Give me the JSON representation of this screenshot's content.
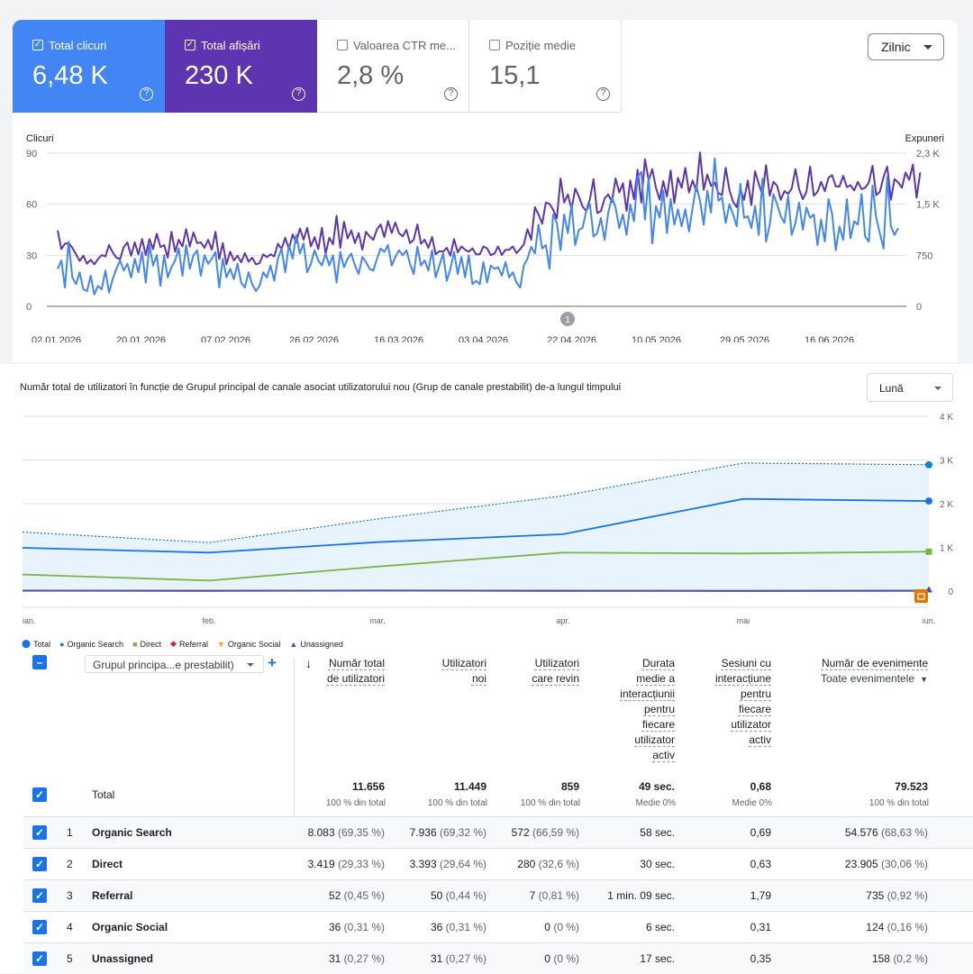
{
  "gsc": {
    "cards": [
      {
        "label": "Total clicuri",
        "value": "6,48 K",
        "checked": true,
        "color": "#4285f4"
      },
      {
        "label": "Total afișări",
        "value": "230 K",
        "checked": true,
        "color": "#5e35b1"
      },
      {
        "label": "Valoarea CTR me...",
        "value": "2,8 %",
        "checked": false,
        "color": "#ffffff"
      },
      {
        "label": "Poziție medie",
        "value": "15,1",
        "checked": false,
        "color": "#ffffff"
      }
    ],
    "period_select": "Zilnic",
    "left_axis_title": "Clicuri",
    "right_axis_title": "Expuneri",
    "left_ticks": [
      "90",
      "60",
      "30",
      "0"
    ],
    "right_ticks": [
      "2,3 K",
      "1,5 K",
      "750",
      "0"
    ],
    "x_ticks": [
      "02.01.2026",
      "20.01.2026",
      "07.02.2026",
      "26.02.2026",
      "16.03.2026",
      "03.04.2026",
      "22.04.2026",
      "10.05.2026",
      "29.05.2026",
      "16.06.2026"
    ],
    "annotation_marker": "1",
    "help_icon": "question-circle-icon"
  },
  "ga_chart": {
    "title": "Număr total de utilizatori în funcție de Grupul principal de canale asociat utilizatorului nou (Grup de canale prestabilit) de-a lungul timpului",
    "period_select": "Lună",
    "y_ticks": [
      "4 K",
      "3 K",
      "2 K",
      "1 K",
      "0"
    ],
    "x_ticks": [
      "ian.",
      "feb.",
      "mar.",
      "apr.",
      "mai",
      "iun."
    ],
    "legend": [
      {
        "label": "Total",
        "color": "#1a73e8",
        "icon": "pin-icon"
      },
      {
        "label": "Organic Search",
        "color": "#1a73e8",
        "icon": "circle-icon"
      },
      {
        "label": "Direct",
        "color": "#7cb342",
        "icon": "square-icon"
      },
      {
        "label": "Referral",
        "color": "#d81b60",
        "icon": "diamond-icon"
      },
      {
        "label": "Organic Social",
        "color": "#f9ab00",
        "icon": "triangle-down-icon"
      },
      {
        "label": "Unassigned",
        "color": "#3f51b5",
        "icon": "triangle-up-icon"
      }
    ]
  },
  "chart_data": [
    {
      "type": "line",
      "title": "",
      "xlabel": "",
      "ylabel": "Clicuri",
      "y2label": "Expuneri",
      "ylim": [
        0,
        90
      ],
      "y2lim": [
        0,
        2300
      ],
      "x_range": [
        "02.01.2026",
        "30.06.2026"
      ],
      "series": [
        {
          "name": "Total clicuri",
          "axis": "left",
          "color": "#4285f4",
          "values": [
            22,
            27,
            11,
            38,
            17,
            13,
            20,
            10,
            9,
            18,
            7,
            12,
            10,
            21,
            8,
            16,
            22,
            27,
            21,
            25,
            17,
            28,
            20,
            32,
            14,
            36,
            24,
            30,
            12,
            30,
            17,
            23,
            27,
            34,
            18,
            36,
            22,
            30,
            33,
            18,
            30,
            25,
            28,
            32,
            11,
            28,
            17,
            22,
            16,
            25,
            14,
            11,
            20,
            13,
            9,
            12,
            20,
            17,
            24,
            15,
            28,
            34,
            20,
            36,
            28,
            42,
            31,
            37,
            20,
            25,
            33,
            27,
            24,
            31,
            24,
            30,
            14,
            32,
            23,
            28,
            31,
            24,
            19,
            29,
            26,
            22,
            21,
            28,
            34,
            32,
            36,
            24,
            29,
            33,
            30,
            33,
            25,
            19,
            35,
            24,
            27,
            21,
            33,
            17,
            24,
            31,
            15,
            22,
            32,
            19,
            29,
            17,
            30,
            13,
            15,
            13,
            26,
            14,
            24,
            22,
            23,
            18,
            26,
            17,
            20,
            14,
            11,
            24,
            28,
            35,
            31,
            48,
            34,
            36,
            22,
            54,
            49,
            33,
            54,
            43,
            60,
            36,
            45,
            46,
            56,
            60,
            41,
            43,
            52,
            39,
            55,
            64,
            58,
            46,
            54,
            42,
            60,
            50,
            76,
            79,
            51,
            76,
            37,
            59,
            52,
            68,
            43,
            63,
            48,
            57,
            47,
            57,
            44,
            58,
            71,
            62,
            48,
            68,
            55,
            87,
            62,
            64,
            49,
            60,
            54,
            47,
            72,
            52,
            53,
            46,
            59,
            42,
            75,
            38,
            48,
            66,
            60,
            53,
            49,
            65,
            42,
            49,
            61,
            45,
            58,
            52,
            54,
            36,
            51,
            38,
            63,
            54,
            33,
            47,
            39,
            63,
            40,
            50,
            48,
            66,
            41,
            38,
            71,
            52,
            43,
            34,
            76,
            47,
            42,
            46
          ]
        },
        {
          "name": "Total afișări",
          "axis": "right",
          "color": "#5e35b1",
          "values": [
            1140,
            860,
            940,
            950,
            880,
            780,
            680,
            760,
            640,
            700,
            630,
            710,
            770,
            750,
            920,
            810,
            730,
            710,
            890,
            960,
            760,
            960,
            780,
            1010,
            770,
            1010,
            860,
            1090,
            890,
            920,
            730,
            1120,
            820,
            1000,
            900,
            1160,
            900,
            1110,
            950,
            960,
            880,
            1000,
            850,
            1120,
            710,
            950,
            630,
            820,
            690,
            760,
            660,
            800,
            670,
            730,
            630,
            650,
            780,
            740,
            780,
            750,
            940,
            860,
            1030,
            860,
            1080,
            960,
            1170,
            1000,
            1180,
            900,
            1040,
            860,
            1180,
            790,
            1030,
            930,
            1360,
            880,
            1270,
            1020,
            1140,
            950,
            1100,
            850,
            1120,
            1050,
            1000,
            1160,
            1230,
            1040,
            1280,
            1100,
            1260,
            1100,
            1050,
            1150,
            950,
            1000,
            1230,
            940,
            1000,
            880,
            1040,
            780,
            830,
            820,
            880,
            760,
            1010,
            810,
            900,
            850,
            820,
            870,
            780,
            780,
            900,
            870,
            770,
            790,
            900,
            770,
            850,
            850,
            900,
            800,
            860,
            930,
            1160,
            1000,
            1490,
            1380,
            1240,
            1560,
            1540,
            1450,
            1320,
            1920,
            1560,
            1680,
            1460,
            1770,
            1650,
            1500,
            1430,
            1610,
            1910,
            1400,
            1430,
            1620,
            1680,
            1570,
            1920,
            1710,
            1850,
            1430,
            1890,
            1610,
            2050,
            1560,
            2210,
            1890,
            2060,
            1780,
            1600,
            1880,
            1650,
            2040,
            1550,
            1930,
            1780,
            2080,
            1710,
            1890,
            1730,
            2310,
            1750,
            1980,
            1810,
            1860,
            1700,
            1670,
            2080,
            1750,
            1570,
            1490,
            1760,
            1600,
            1890,
            1520,
            2030,
            1840,
            1670,
            2120,
            1660,
            1870,
            1810,
            1600,
            1730,
            1690,
            1770,
            2060,
            1760,
            1610,
            1720,
            2100,
            1660,
            1720,
            1870,
            1730,
            1930,
            1970,
            1800,
            1800,
            1960,
            1790,
            1820,
            1740,
            1870,
            1760,
            1780,
            1860,
            2110,
            1670,
            1720,
            1940,
            2100,
            1600,
            1910,
            1860,
            1780,
            2010,
            1900,
            2130,
            1630,
            2010
          ]
        }
      ]
    },
    {
      "type": "area",
      "title": "Număr total de utilizatori în funcție de Grupul principal de canale asociat utilizatorului nou (Grup de canale prestabilit) de-a lungul timpului",
      "xlabel": "",
      "ylabel": "",
      "ylim": [
        0,
        4000
      ],
      "categories": [
        "ian.",
        "feb.",
        "mar.",
        "apr.",
        "mai",
        "iun."
      ],
      "series": [
        {
          "name": "Total",
          "color": "#1a73e8",
          "values": [
            1350,
            1110,
            1650,
            2180,
            2930,
            2890
          ]
        },
        {
          "name": "Organic Search",
          "color": "#1a73e8",
          "values": [
            990,
            880,
            1120,
            1300,
            2110,
            2060
          ]
        },
        {
          "name": "Direct",
          "color": "#7cb342",
          "values": [
            380,
            240,
            560,
            880,
            860,
            900
          ]
        },
        {
          "name": "Referral",
          "color": "#d81b60",
          "values": [
            10,
            10,
            15,
            10,
            5,
            5
          ]
        },
        {
          "name": "Organic Social",
          "color": "#f9ab00",
          "values": [
            5,
            5,
            10,
            5,
            10,
            5
          ]
        },
        {
          "name": "Unassigned",
          "color": "#3f51b5",
          "values": [
            10,
            5,
            10,
            5,
            5,
            10
          ]
        }
      ]
    }
  ],
  "table": {
    "dimension_select": "Grupul principa...e prestabilit)",
    "add_icon": "+",
    "sort_icon": "↓",
    "headers": [
      {
        "lines": [
          "Număr total",
          "de utilizatori"
        ]
      },
      {
        "lines": [
          "Utilizatori",
          "noi"
        ]
      },
      {
        "lines": [
          "Utilizatori",
          "care revin"
        ]
      },
      {
        "lines": [
          "Durata",
          "medie a",
          "interacțiunii",
          "pentru",
          "fiecare",
          "utilizator",
          "activ"
        ]
      },
      {
        "lines": [
          "Sesiuni cu",
          "interacțiune",
          "pentru",
          "fiecare",
          "utilizator",
          "activ"
        ]
      },
      {
        "lines": [
          "Număr de evenimente"
        ],
        "select": "Toate evenimentele"
      }
    ],
    "total": {
      "label": "Total",
      "values": [
        "11.656",
        "11.449",
        "859",
        "49 sec.",
        "0,68",
        "79.523"
      ],
      "subs": [
        "100 % din total",
        "100 % din total",
        "100 % din total",
        "Medie 0%",
        "Medie 0%",
        "100 % din total"
      ]
    },
    "rows": [
      {
        "idx": "1",
        "name": "Organic Search",
        "cells": [
          [
            "8.083",
            "(69,35 %)"
          ],
          [
            "7.936",
            "(69,32 %)"
          ],
          [
            "572",
            "(66,59 %)"
          ],
          [
            "58 sec.",
            ""
          ],
          [
            "0,69",
            ""
          ],
          [
            "54.576",
            "(68,63 %)"
          ]
        ]
      },
      {
        "idx": "2",
        "name": "Direct",
        "cells": [
          [
            "3.419",
            "(29,33 %)"
          ],
          [
            "3.393",
            "(29,64 %)"
          ],
          [
            "280",
            "(32,6 %)"
          ],
          [
            "30 sec.",
            ""
          ],
          [
            "0,63",
            ""
          ],
          [
            "23.905",
            "(30,06 %)"
          ]
        ]
      },
      {
        "idx": "3",
        "name": "Referral",
        "cells": [
          [
            "52",
            "(0,45 %)"
          ],
          [
            "50",
            "(0,44 %)"
          ],
          [
            "7",
            "(0,81 %)"
          ],
          [
            "1 min. 09 sec.",
            ""
          ],
          [
            "1,79",
            ""
          ],
          [
            "735",
            "(0,92 %)"
          ]
        ]
      },
      {
        "idx": "4",
        "name": "Organic Social",
        "cells": [
          [
            "36",
            "(0,31 %)"
          ],
          [
            "36",
            "(0,31 %)"
          ],
          [
            "0",
            "(0 %)"
          ],
          [
            "6 sec.",
            ""
          ],
          [
            "0,31",
            ""
          ],
          [
            "124",
            "(0,16 %)"
          ]
        ]
      },
      {
        "idx": "5",
        "name": "Unassigned",
        "cells": [
          [
            "31",
            "(0,27 %)"
          ],
          [
            "31",
            "(0,27 %)"
          ],
          [
            "0",
            "(0 %)"
          ],
          [
            "17 sec.",
            ""
          ],
          [
            "0,35",
            ""
          ],
          [
            "158",
            "(0,2 %)"
          ]
        ]
      }
    ]
  }
}
